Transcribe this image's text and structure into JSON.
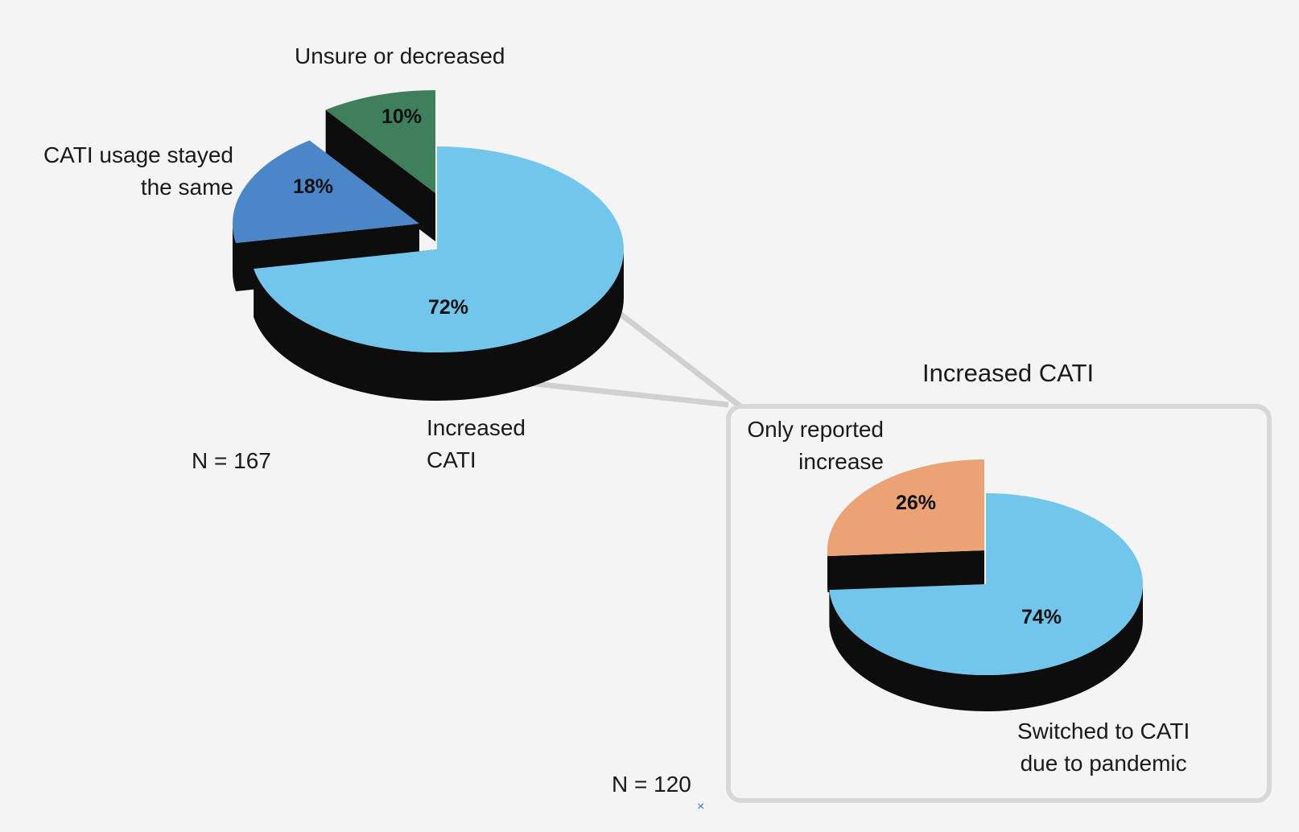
{
  "chart_data": [
    {
      "type": "pie",
      "title": "",
      "n_label": "N = 167",
      "slices": [
        {
          "label": "Increased CATI",
          "label_lines": [
            "Increased",
            "CATI"
          ],
          "value": 72,
          "value_label": "72%",
          "color": "#72c6ec"
        },
        {
          "label": "CATI usage stayed the same",
          "label_lines": [
            "CATI usage stayed",
            "the same"
          ],
          "value": 18,
          "value_label": "18%",
          "color": "#4a86c8"
        },
        {
          "label": "Unsure or decreased",
          "label_lines": [
            "Unsure or decreased"
          ],
          "value": 10,
          "value_label": "10%",
          "color": "#3f7f5c"
        }
      ]
    },
    {
      "type": "pie",
      "title": "Increased CATI",
      "n_label": "N = 120",
      "slices": [
        {
          "label": "Switched to CATI due to pandemic",
          "label_lines": [
            "Switched to CATI",
            "due to pandemic"
          ],
          "value": 74,
          "value_label": "74%",
          "color": "#72c6ec"
        },
        {
          "label": "Only reported increase",
          "label_lines": [
            "Only reported",
            "increase"
          ],
          "value": 26,
          "value_label": "26%",
          "color": "#eba275"
        }
      ]
    }
  ],
  "marker": "×"
}
